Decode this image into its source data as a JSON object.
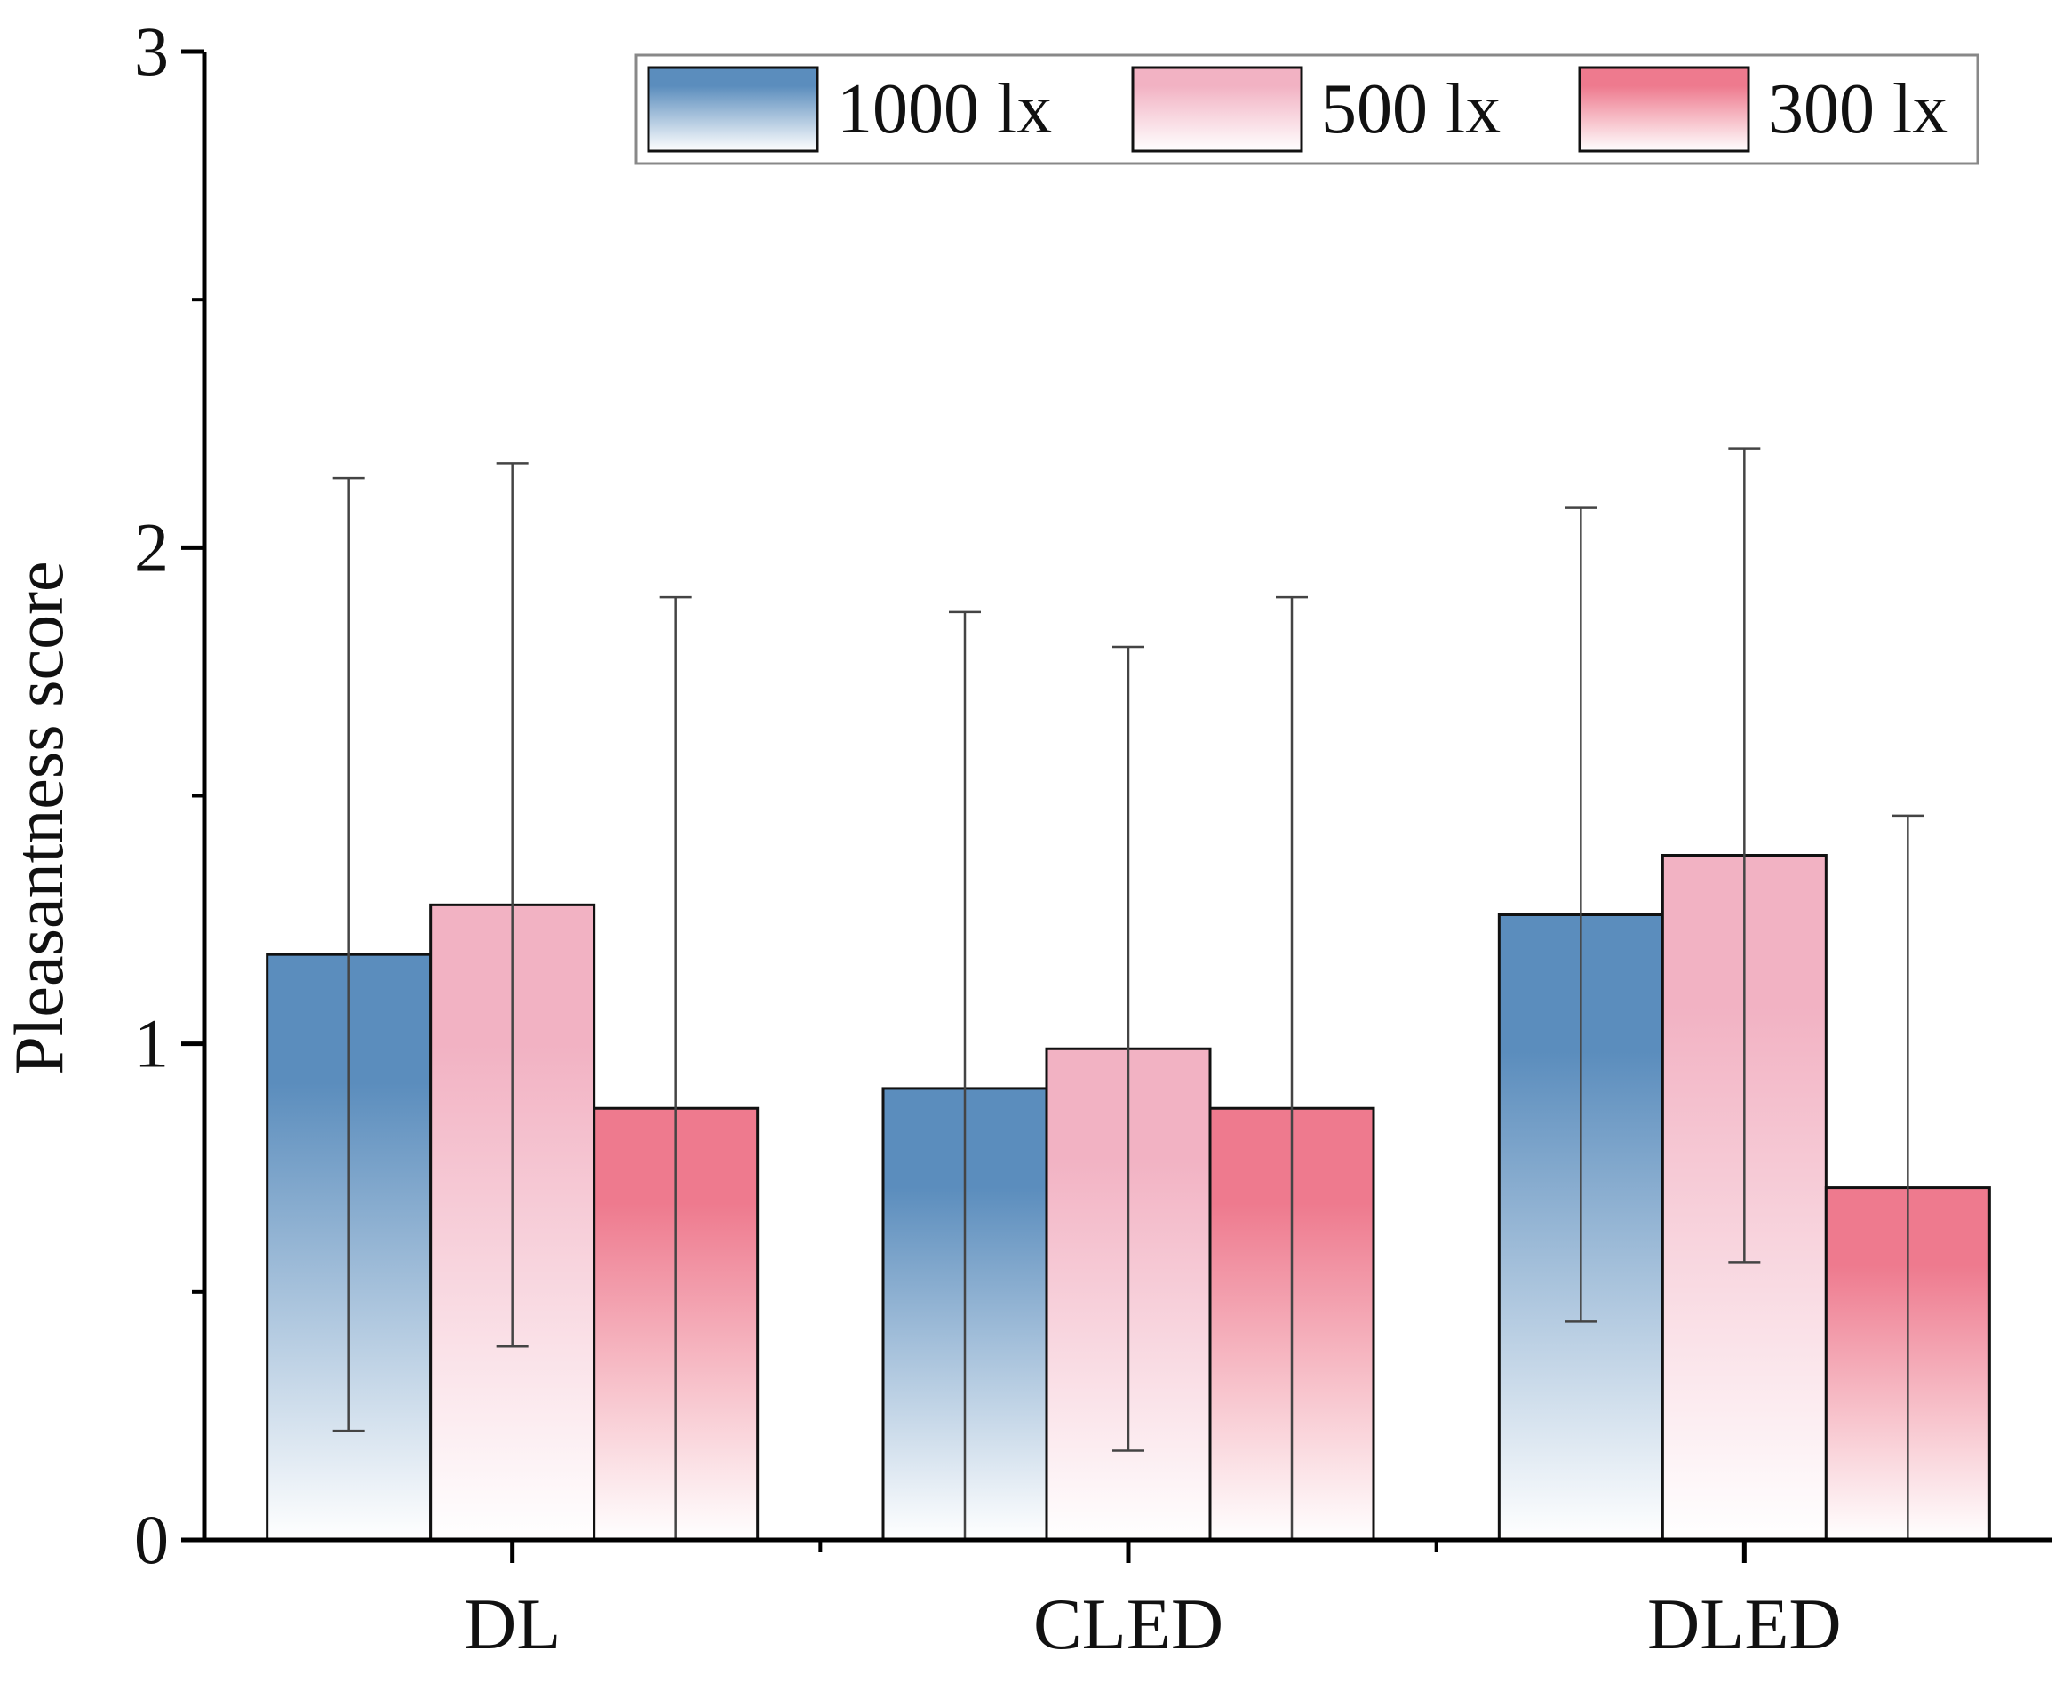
{
  "chart_data": {
    "type": "bar",
    "title": "",
    "xlabel": "",
    "ylabel": "Pleasantness score",
    "ylim": [
      0,
      3
    ],
    "yticks": [
      0,
      1,
      2,
      3
    ],
    "grid": false,
    "legend_position": "top-right",
    "categories": [
      "DL",
      "CLED",
      "DLED"
    ],
    "series": [
      {
        "name": "1000 lx",
        "color_top": "#5b8dbd",
        "color_bottom": "#ffffff",
        "values": [
          1.18,
          0.91,
          1.26
        ],
        "error": [
          0.96,
          0.96,
          0.82
        ]
      },
      {
        "name": "500 lx",
        "color_top": "#f2b2c3",
        "color_bottom": "#ffffff",
        "values": [
          1.28,
          0.99,
          1.38
        ],
        "error": [
          0.89,
          0.81,
          0.82
        ]
      },
      {
        "name": "300 lx",
        "color_top": "#ee7a8e",
        "color_bottom": "#ffffff",
        "values": [
          0.87,
          0.87,
          0.71
        ],
        "error": [
          1.03,
          1.03,
          0.75
        ]
      }
    ]
  }
}
